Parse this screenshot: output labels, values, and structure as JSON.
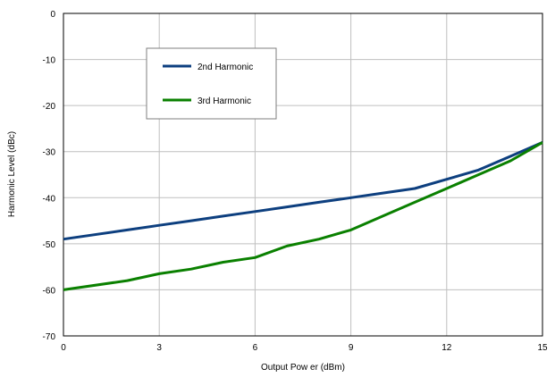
{
  "chart_data": {
    "type": "line",
    "title": "",
    "xlabel": "Output Pow er (dBm)",
    "ylabel": "Harmonic Level (dBc)",
    "xlim": [
      0,
      15
    ],
    "ylim": [
      -70,
      0
    ],
    "x_ticks": [
      "0",
      "3",
      "6",
      "9",
      "12",
      "15"
    ],
    "y_ticks": [
      "0",
      "-10",
      "-20",
      "-30",
      "-40",
      "-50",
      "-60",
      "-70"
    ],
    "grid": true,
    "legend_position": "upper-left",
    "series": [
      {
        "name": "2nd Harmonic",
        "color": "#0d3f7f",
        "x": [
          0,
          2,
          3,
          4,
          5,
          6,
          7,
          8,
          9,
          10,
          11,
          12,
          13,
          14,
          15
        ],
        "y": [
          -49,
          -47,
          -46,
          -45,
          -44,
          -43,
          -42,
          -41,
          -40,
          -39,
          -38,
          -36,
          -34,
          -31,
          -28
        ]
      },
      {
        "name": "3rd Harmonic",
        "color": "#0a8000",
        "x": [
          0,
          2,
          3,
          4,
          5,
          6,
          7,
          8,
          9,
          10,
          11,
          12,
          13,
          14,
          15
        ],
        "y": [
          -60,
          -58,
          -56.5,
          -55.5,
          -54,
          -53,
          -50.5,
          -49,
          -47,
          -44,
          -41,
          -38,
          -35,
          -32,
          -28
        ]
      }
    ]
  }
}
